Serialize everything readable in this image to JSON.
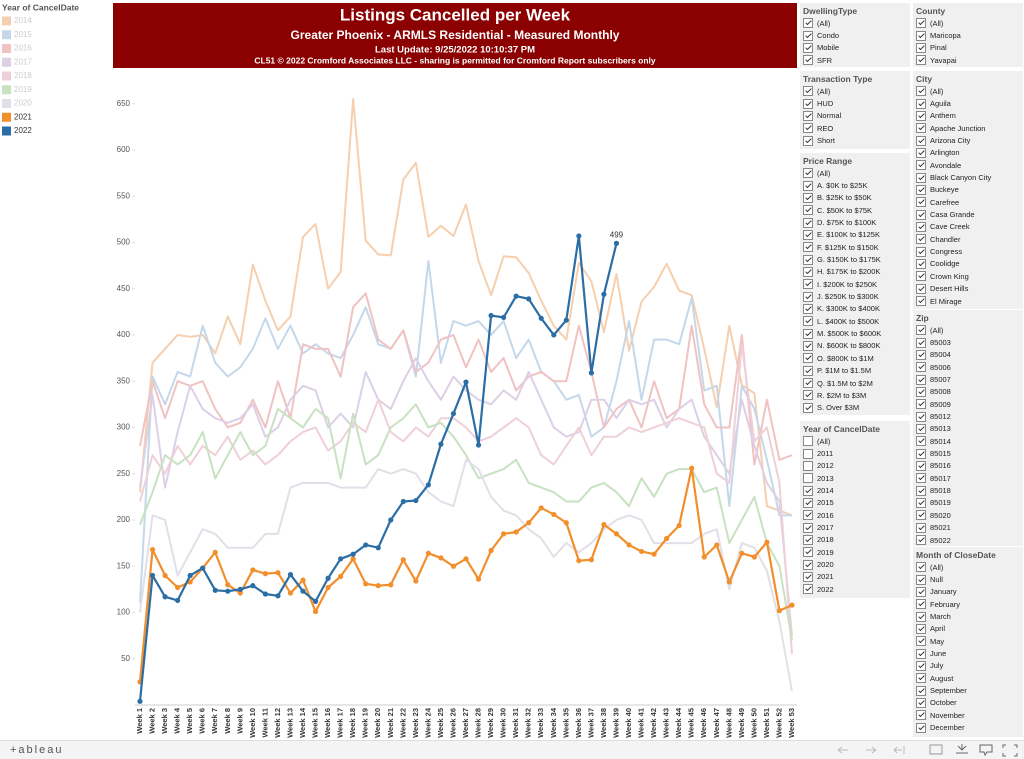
{
  "header": {
    "title": "Listings Cancelled per Week",
    "subtitle": "Greater Phoenix - ARMLS Residential - Measured Monthly",
    "update": "Last Update: 9/25/2022 10:10:37 PM",
    "copyright": "CL51 © 2022 Cromford Associates LLC - sharing is permitted for Cromford Report subscribers only"
  },
  "legend_title": "Year of CancelDate",
  "chart_data": {
    "type": "line",
    "grid": false,
    "categories": [
      "Week 1",
      "Week 2",
      "Week 3",
      "Week 4",
      "Week 5",
      "Week 6",
      "Week 7",
      "Week 8",
      "Week 9",
      "Week 10",
      "Week 11",
      "Week 12",
      "Week 13",
      "Week 14",
      "Week 15",
      "Week 16",
      "Week 17",
      "Week 18",
      "Week 19",
      "Week 20",
      "Week 21",
      "Week 22",
      "Week 23",
      "Week 24",
      "Week 25",
      "Week 26",
      "Week 27",
      "Week 28",
      "Week 29",
      "Week 30",
      "Week 31",
      "Week 32",
      "Week 33",
      "Week 34",
      "Week 35",
      "Week 36",
      "Week 37",
      "Week 38",
      "Week 39",
      "Week 40",
      "Week 41",
      "Week 42",
      "Week 43",
      "Week 44",
      "Week 45",
      "Week 46",
      "Week 47",
      "Week 48",
      "Week 49",
      "Week 50",
      "Week 51",
      "Week 52",
      "Week 53"
    ],
    "ylim": [
      0,
      681
    ],
    "yticks": [
      50,
      100,
      150,
      200,
      250,
      300,
      350,
      400,
      450,
      500,
      550,
      600,
      650
    ],
    "series": [
      {
        "name": "2014",
        "color": "#f6cfae",
        "highlight": false,
        "values": [
          230,
          370,
          385,
          400,
          398,
          400,
          380,
          420,
          390,
          476,
          437,
          405,
          420,
          506,
          520,
          450,
          468,
          655,
          502,
          487,
          486,
          568,
          586,
          506,
          518,
          507,
          541,
          480,
          443,
          485,
          484,
          467,
          437,
          410,
          395,
          478,
          458,
          403,
          466,
          383,
          436,
          452,
          477,
          448,
          443,
          385,
          322,
          410,
          346,
          337,
          215,
          210,
          205
        ]
      },
      {
        "name": "2015",
        "color": "#c4d8ea",
        "highlight": false,
        "values": [
          110,
          355,
          325,
          360,
          355,
          410,
          370,
          355,
          365,
          385,
          418,
          385,
          410,
          380,
          390,
          380,
          375,
          400,
          430,
          390,
          385,
          405,
          355,
          480,
          370,
          415,
          410,
          415,
          400,
          415,
          375,
          395,
          360,
          350,
          330,
          335,
          290,
          300,
          350,
          415,
          330,
          395,
          395,
          390,
          440,
          340,
          345,
          215,
          345,
          320,
          265,
          205,
          205
        ]
      },
      {
        "name": "2016",
        "color": "#f0c2c2",
        "highlight": false,
        "values": [
          280,
          350,
          310,
          350,
          345,
          350,
          320,
          300,
          305,
          330,
          300,
          350,
          310,
          390,
          385,
          385,
          355,
          430,
          445,
          395,
          385,
          405,
          360,
          370,
          395,
          400,
          365,
          395,
          360,
          375,
          340,
          355,
          360,
          350,
          350,
          410,
          360,
          300,
          320,
          330,
          300,
          350,
          310,
          320,
          410,
          325,
          300,
          300,
          400,
          260,
          330,
          265,
          270
        ]
      },
      {
        "name": "2017",
        "color": "#ddd0e6",
        "highlight": false,
        "values": [
          235,
          335,
          235,
          295,
          345,
          320,
          310,
          305,
          310,
          325,
          290,
          300,
          330,
          345,
          340,
          300,
          315,
          300,
          360,
          330,
          320,
          350,
          375,
          350,
          330,
          355,
          340,
          330,
          325,
          340,
          330,
          360,
          330,
          300,
          290,
          295,
          330,
          330,
          310,
          330,
          325,
          330,
          300,
          320,
          330,
          290,
          270,
          250,
          330,
          280,
          240,
          220,
          75
        ]
      },
      {
        "name": "2018",
        "color": "#efd0d8",
        "highlight": false,
        "values": [
          220,
          270,
          250,
          280,
          260,
          280,
          270,
          290,
          265,
          275,
          260,
          270,
          285,
          295,
          300,
          275,
          285,
          305,
          295,
          330,
          295,
          285,
          300,
          290,
          310,
          310,
          300,
          285,
          290,
          300,
          310,
          300,
          270,
          260,
          280,
          300,
          270,
          290,
          290,
          300,
          295,
          300,
          305,
          310,
          305,
          300,
          250,
          240,
          390,
          285,
          300,
          240,
          55
        ]
      },
      {
        "name": "2019",
        "color": "#c8e2c1",
        "highlight": false,
        "values": [
          195,
          230,
          270,
          260,
          270,
          295,
          245,
          270,
          295,
          270,
          280,
          320,
          310,
          300,
          320,
          310,
          245,
          315,
          260,
          270,
          300,
          310,
          325,
          300,
          305,
          290,
          270,
          245,
          250,
          255,
          265,
          240,
          235,
          230,
          220,
          220,
          235,
          240,
          230,
          215,
          245,
          225,
          250,
          255,
          255,
          230,
          235,
          175,
          200,
          225,
          175,
          150,
          70
        ]
      },
      {
        "name": "2020",
        "color": "#e2dfe8",
        "highlight": false,
        "values": [
          100,
          205,
          200,
          140,
          165,
          190,
          185,
          170,
          170,
          170,
          185,
          185,
          235,
          240,
          240,
          240,
          235,
          235,
          235,
          255,
          250,
          255,
          250,
          230,
          220,
          215,
          265,
          255,
          225,
          210,
          205,
          190,
          180,
          160,
          175,
          165,
          175,
          190,
          200,
          205,
          200,
          175,
          175,
          175,
          175,
          185,
          190,
          125,
          175,
          170,
          145,
          90,
          15
        ]
      },
      {
        "name": "2021",
        "color": "#f28e2b",
        "highlight": true,
        "values": [
          25,
          168,
          140,
          127,
          133,
          148,
          165,
          130,
          121,
          146,
          142,
          143,
          121,
          135,
          101,
          127,
          139,
          158,
          131,
          129,
          130,
          157,
          134,
          164,
          159,
          150,
          158,
          136,
          167,
          185,
          187,
          197,
          213,
          206,
          197,
          156,
          157,
          195,
          185,
          173,
          166,
          163,
          180,
          194,
          256,
          160,
          173,
          133,
          164,
          160,
          176,
          102,
          108
        ]
      },
      {
        "name": "2022",
        "color": "#2b6ea6",
        "highlight": true,
        "label_last": true,
        "values": [
          4,
          140,
          117,
          113,
          140,
          148,
          124,
          123,
          125,
          129,
          120,
          118,
          141,
          123,
          112,
          137,
          158,
          163,
          173,
          170,
          200,
          220,
          221,
          238,
          282,
          315,
          349,
          281,
          421,
          419,
          442,
          439,
          418,
          400,
          416,
          507,
          359,
          444,
          499,
          null,
          null,
          null,
          null,
          null,
          null,
          null,
          null,
          null,
          null,
          null,
          null,
          null,
          null
        ]
      }
    ]
  },
  "filters": [
    {
      "title": "DwellingType",
      "items": [
        {
          "label": "(All)",
          "checked": true
        },
        {
          "label": "Condo",
          "checked": true
        },
        {
          "label": "Mobile",
          "checked": true
        },
        {
          "label": "SFR",
          "checked": true
        }
      ]
    },
    {
      "title": "Transaction Type",
      "items": [
        {
          "label": "(All)",
          "checked": true
        },
        {
          "label": "HUD",
          "checked": true
        },
        {
          "label": "Normal",
          "checked": true
        },
        {
          "label": "REO",
          "checked": true
        },
        {
          "label": "Short",
          "checked": true
        }
      ]
    },
    {
      "title": "Price Range",
      "items": [
        {
          "label": "(All)",
          "checked": true
        },
        {
          "label": "A. $0K to $25K",
          "checked": true
        },
        {
          "label": "B. $25K to $50K",
          "checked": true
        },
        {
          "label": "C. $50K to $75K",
          "checked": true
        },
        {
          "label": "D. $75K to $100K",
          "checked": true
        },
        {
          "label": "E. $100K to $125K",
          "checked": true
        },
        {
          "label": "F. $125K to $150K",
          "checked": true
        },
        {
          "label": "G. $150K to $175K",
          "checked": true
        },
        {
          "label": "H. $175K to $200K",
          "checked": true
        },
        {
          "label": "I. $200K to $250K",
          "checked": true
        },
        {
          "label": "J. $250K to $300K",
          "checked": true
        },
        {
          "label": "K. $300K to $400K",
          "checked": true
        },
        {
          "label": "L. $400K to $500K",
          "checked": true
        },
        {
          "label": "M. $500K to $600K",
          "checked": true
        },
        {
          "label": "N. $600K to $800K",
          "checked": true
        },
        {
          "label": "O. $800K to $1M",
          "checked": true
        },
        {
          "label": "P. $1M to $1.5M",
          "checked": true
        },
        {
          "label": "Q. $1.5M to $2M",
          "checked": true
        },
        {
          "label": "R. $2M to $3M",
          "checked": true
        },
        {
          "label": "S. Over $3M",
          "checked": true
        }
      ]
    },
    {
      "title": "Year of CancelDate",
      "items": [
        {
          "label": "(All)",
          "checked": false
        },
        {
          "label": "2011",
          "checked": false
        },
        {
          "label": "2012",
          "checked": false
        },
        {
          "label": "2013",
          "checked": false
        },
        {
          "label": "2014",
          "checked": true
        },
        {
          "label": "2015",
          "checked": true
        },
        {
          "label": "2016",
          "checked": true
        },
        {
          "label": "2017",
          "checked": true
        },
        {
          "label": "2018",
          "checked": true
        },
        {
          "label": "2019",
          "checked": true
        },
        {
          "label": "2020",
          "checked": true
        },
        {
          "label": "2021",
          "checked": true
        },
        {
          "label": "2022",
          "checked": true
        }
      ]
    },
    {
      "title": "County",
      "items": [
        {
          "label": "(All)",
          "checked": true
        },
        {
          "label": "Maricopa",
          "checked": true
        },
        {
          "label": "Pinal",
          "checked": true
        },
        {
          "label": "Yavapai",
          "checked": true
        }
      ]
    },
    {
      "title": "City",
      "items": [
        {
          "label": "(All)",
          "checked": true
        },
        {
          "label": "Aguila",
          "checked": true
        },
        {
          "label": "Anthem",
          "checked": true
        },
        {
          "label": "Apache Junction",
          "checked": true
        },
        {
          "label": "Arizona City",
          "checked": true
        },
        {
          "label": "Arlington",
          "checked": true
        },
        {
          "label": "Avondale",
          "checked": true
        },
        {
          "label": "Black Canyon City",
          "checked": true
        },
        {
          "label": "Buckeye",
          "checked": true
        },
        {
          "label": "Carefree",
          "checked": true
        },
        {
          "label": "Casa Grande",
          "checked": true
        },
        {
          "label": "Cave Creek",
          "checked": true
        },
        {
          "label": "Chandler",
          "checked": true
        },
        {
          "label": "Congress",
          "checked": true
        },
        {
          "label": "Coolidge",
          "checked": true
        },
        {
          "label": "Crown King",
          "checked": true
        },
        {
          "label": "Desert Hills",
          "checked": true
        },
        {
          "label": "El Mirage",
          "checked": true
        }
      ]
    },
    {
      "title": "Zip",
      "items": [
        {
          "label": "(All)",
          "checked": true
        },
        {
          "label": "85003",
          "checked": true
        },
        {
          "label": "85004",
          "checked": true
        },
        {
          "label": "85006",
          "checked": true
        },
        {
          "label": "85007",
          "checked": true
        },
        {
          "label": "85008",
          "checked": true
        },
        {
          "label": "85009",
          "checked": true
        },
        {
          "label": "85012",
          "checked": true
        },
        {
          "label": "85013",
          "checked": true
        },
        {
          "label": "85014",
          "checked": true
        },
        {
          "label": "85015",
          "checked": true
        },
        {
          "label": "85016",
          "checked": true
        },
        {
          "label": "85017",
          "checked": true
        },
        {
          "label": "85018",
          "checked": true
        },
        {
          "label": "85019",
          "checked": true
        },
        {
          "label": "85020",
          "checked": true
        },
        {
          "label": "85021",
          "checked": true
        },
        {
          "label": "85022",
          "checked": true
        }
      ]
    },
    {
      "title": "Month of CloseDate",
      "items": [
        {
          "label": "(All)",
          "checked": true
        },
        {
          "label": "Null",
          "checked": true
        },
        {
          "label": "January",
          "checked": true
        },
        {
          "label": "February",
          "checked": true
        },
        {
          "label": "March",
          "checked": true
        },
        {
          "label": "April",
          "checked": true
        },
        {
          "label": "May",
          "checked": true
        },
        {
          "label": "June",
          "checked": true
        },
        {
          "label": "July",
          "checked": true
        },
        {
          "label": "August",
          "checked": true
        },
        {
          "label": "September",
          "checked": true
        },
        {
          "label": "October",
          "checked": true
        },
        {
          "label": "November",
          "checked": true
        },
        {
          "label": "December",
          "checked": true
        }
      ]
    }
  ],
  "footer": {
    "logo": "+ableau"
  }
}
